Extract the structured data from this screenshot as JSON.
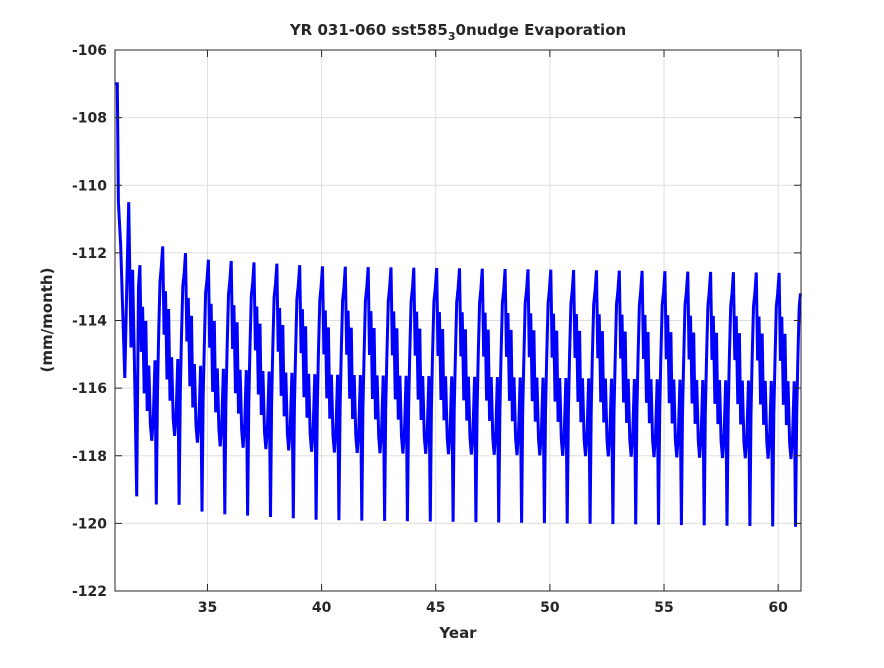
{
  "chart_data": {
    "type": "line",
    "title_main": "YR 031-060 sst585",
    "title_sub": "3",
    "title_rest": "0nudge Evaporation",
    "xlabel": "Year",
    "ylabel": "(mm/month)",
    "xlim": [
      30.95,
      61.0
    ],
    "ylim": [
      -122,
      -106
    ],
    "xticks": [
      35,
      40,
      45,
      50,
      55,
      60
    ],
    "yticks": [
      -106,
      -108,
      -110,
      -112,
      -114,
      -116,
      -118,
      -120,
      -122
    ],
    "grid": true,
    "series": [
      {
        "color": "#0000ff",
        "cycle_keypoints": [
          [
            0.0,
            -113.0
          ],
          [
            0.06,
            -112.4
          ],
          [
            0.12,
            -115.0
          ],
          [
            0.18,
            -113.7
          ],
          [
            0.25,
            -116.3
          ],
          [
            0.32,
            -114.2
          ],
          [
            0.38,
            -116.9
          ],
          [
            0.45,
            -115.6
          ],
          [
            0.52,
            -117.4
          ],
          [
            0.58,
            -117.9
          ],
          [
            0.65,
            -117.2
          ],
          [
            0.72,
            -115.6
          ],
          [
            0.78,
            -119.9
          ],
          [
            0.83,
            -116.6
          ],
          [
            0.88,
            -115.0
          ],
          [
            0.94,
            -113.4
          ],
          [
            1.0,
            -113.0
          ]
        ],
        "cycle_phase_start": 0.0,
        "initial_transient": [
          [
            30.95,
            -107.0
          ],
          [
            31.05,
            -107.0
          ],
          [
            31.1,
            -110.5
          ],
          [
            31.2,
            -111.8
          ],
          [
            31.3,
            -114.0
          ],
          [
            31.38,
            -115.7
          ],
          [
            31.45,
            -113.5
          ],
          [
            31.55,
            -110.5
          ],
          [
            31.65,
            -114.8
          ],
          [
            31.72,
            -112.5
          ],
          [
            31.8,
            -115.2
          ],
          [
            31.9,
            -119.2
          ],
          [
            31.98,
            -113.0
          ]
        ],
        "trend": [
          [
            31.98,
            0.0
          ],
          [
            33.0,
            0.6
          ],
          [
            35.0,
            0.2
          ],
          [
            40.0,
            0.0
          ],
          [
            61.0,
            -0.2
          ]
        ]
      }
    ]
  }
}
